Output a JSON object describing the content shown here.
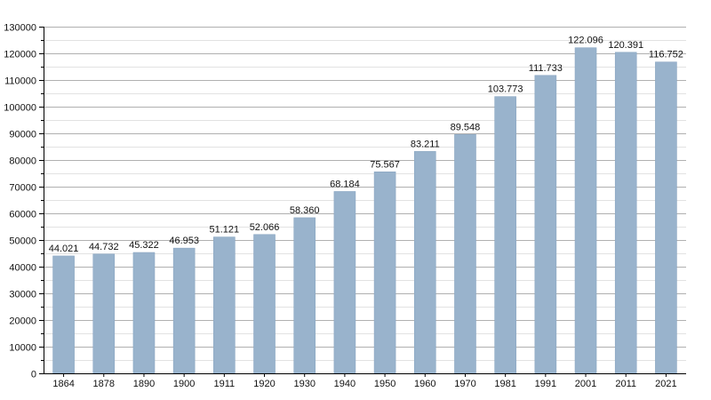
{
  "chart_data": {
    "type": "bar",
    "categories": [
      "1864",
      "1878",
      "1890",
      "1900",
      "1911",
      "1920",
      "1930",
      "1940",
      "1950",
      "1960",
      "1970",
      "1981",
      "1991",
      "2001",
      "2011",
      "2021"
    ],
    "values": [
      44021,
      44732,
      45322,
      46953,
      51121,
      52066,
      58360,
      68184,
      75567,
      83211,
      89548,
      103773,
      111733,
      122096,
      120391,
      116752
    ],
    "value_labels": [
      "44.021",
      "44.732",
      "45.322",
      "46.953",
      "51.121",
      "52.066",
      "58.360",
      "68.184",
      "75.567",
      "83.211",
      "89.548",
      "103.773",
      "111.733",
      "122.096",
      "120.391",
      "116.752"
    ],
    "ylim": [
      0,
      130000
    ],
    "yticks": [
      0,
      10000,
      20000,
      30000,
      40000,
      50000,
      60000,
      70000,
      80000,
      90000,
      100000,
      110000,
      120000,
      130000
    ],
    "ytick_labels": [
      "0",
      "10000",
      "20000",
      "30000",
      "40000",
      "50000",
      "60000",
      "70000",
      "80000",
      "90000",
      "100000",
      "110000",
      "120000",
      "130000"
    ],
    "grid": true,
    "title": "",
    "xlabel": "",
    "ylabel": "",
    "colors": {
      "bar": "#99b3cc",
      "bar_edge": "#8aa6c2",
      "grid_major": "#b0b0b0",
      "grid_minor": "#e2e2e2",
      "axis": "#000000"
    }
  }
}
